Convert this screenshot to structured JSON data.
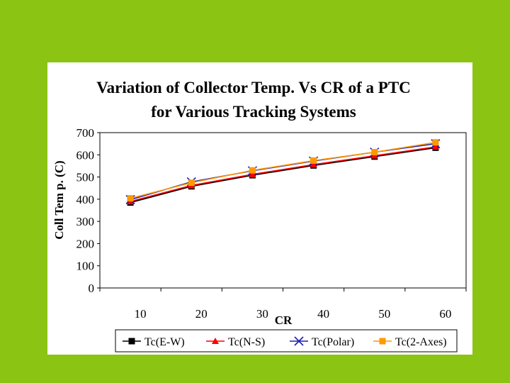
{
  "chart_data": {
    "type": "line",
    "title": "Variation of Collector Temp. Vs CR of a PTC",
    "subtitle": "for Various Tracking Systems",
    "xlabel": "CR",
    "ylabel": "Coll Tem p. (C)",
    "categories": [
      "10",
      "20",
      "30",
      "40",
      "50",
      "60"
    ],
    "ylim": [
      0,
      700
    ],
    "yticks": [
      0,
      100,
      200,
      300,
      400,
      500,
      600,
      700
    ],
    "grid": false,
    "legend_position": "bottom",
    "series": [
      {
        "name": "Tc(E-W)",
        "color": "#000000",
        "marker": "square",
        "values": [
          385,
          458,
          508,
          552,
          592,
          632
        ]
      },
      {
        "name": "Tc(N-S)",
        "color": "#ff0000",
        "marker": "triangle",
        "values": [
          390,
          462,
          512,
          556,
          596,
          636
        ]
      },
      {
        "name": "Tc(Polar)",
        "color": "#1f1fb4",
        "marker": "x",
        "values": [
          398,
          478,
          528,
          572,
          612,
          650
        ]
      },
      {
        "name": "Tc(2-Axes)",
        "color": "#ff9900",
        "marker": "square",
        "values": [
          404,
          474,
          530,
          574,
          612,
          656
        ]
      }
    ]
  }
}
